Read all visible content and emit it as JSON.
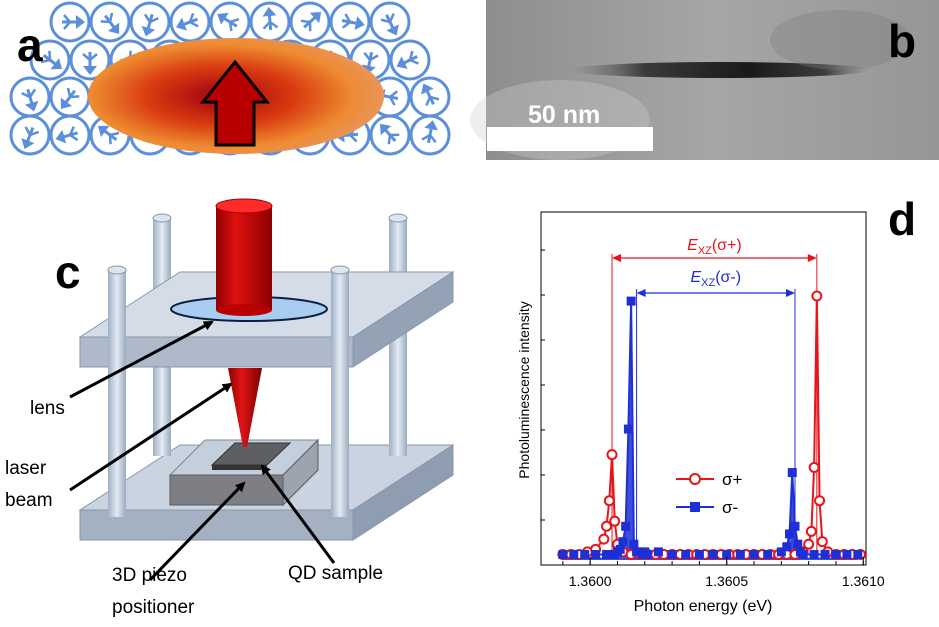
{
  "figure": {
    "panels": {
      "a": {
        "letter": "a"
      },
      "b": {
        "letter": "b",
        "scale_bar_label": "50 nm"
      },
      "c": {
        "letter": "c",
        "labels": {
          "lens": "lens",
          "laser_line1": "laser",
          "laser_line2": "beam",
          "piezo_line1": "3D piezo",
          "piezo_line2": "positioner",
          "qd_sample": "QD sample"
        }
      },
      "d": {
        "letter": "d"
      }
    },
    "colors": {
      "sigma_plus": "#e8141b",
      "sigma_minus": "#1f2fd6",
      "lattice": "#5b8fd9",
      "plate": "#b9c7d6",
      "laser": "#d00000"
    }
  },
  "chart_data": {
    "type": "line",
    "xlabel": "Photon energy (eV)",
    "ylabel": "Photoluminescence intensity",
    "xlim": [
      1.35982,
      1.36101
    ],
    "ylim": [
      0,
      1.22
    ],
    "xticks": [
      1.36,
      1.3605,
      1.361
    ],
    "xtick_labels": [
      "1.3600",
      "1.3605",
      "1.3610"
    ],
    "legend_position": "center",
    "annotations": {
      "exz_plus": {
        "E": "E",
        "sub": "XZ",
        "rest": "(σ+)",
        "x1": 1.36008,
        "x2": 1.36083
      },
      "exz_minus": {
        "E": "E",
        "sub": "XZ",
        "rest": "(σ-)",
        "x1": 1.36017,
        "x2": 1.36075
      }
    },
    "series": [
      {
        "name": "σ+",
        "marker": "open-circle",
        "x": [
          1.3599,
          1.35993,
          1.35996,
          1.35999,
          1.36002,
          1.36005,
          1.36006,
          1.36007,
          1.36008,
          1.36009,
          1.3601,
          1.36012,
          1.36015,
          1.36018,
          1.36021,
          1.36024,
          1.36027,
          1.3603,
          1.36033,
          1.36036,
          1.36039,
          1.36042,
          1.36045,
          1.36048,
          1.36051,
          1.36054,
          1.36057,
          1.3606,
          1.36063,
          1.36066,
          1.36069,
          1.36072,
          1.36075,
          1.36078,
          1.3608,
          1.36081,
          1.36082,
          1.36083,
          1.36084,
          1.36085,
          1.36087,
          1.3609,
          1.36093,
          1.36096,
          1.36099
        ],
        "y": [
          0.01,
          0.01,
          0.01,
          0.02,
          0.03,
          0.07,
          0.12,
          0.22,
          0.4,
          0.14,
          0.05,
          0.02,
          0.01,
          0.01,
          0.01,
          0.01,
          0.01,
          0.01,
          0.01,
          0.01,
          0.01,
          0.01,
          0.01,
          0.01,
          0.01,
          0.01,
          0.01,
          0.01,
          0.01,
          0.01,
          0.01,
          0.01,
          0.01,
          0.02,
          0.05,
          0.1,
          0.35,
          1.02,
          0.22,
          0.06,
          0.02,
          0.01,
          0.01,
          0.01,
          0.01
        ]
      },
      {
        "name": "σ-",
        "marker": "filled-square",
        "x": [
          1.3599,
          1.35994,
          1.35998,
          1.36002,
          1.36006,
          1.36009,
          1.3601,
          1.36011,
          1.36012,
          1.36013,
          1.36014,
          1.36015,
          1.36016,
          1.36017,
          1.36018,
          1.36019,
          1.3602,
          1.36021,
          1.36025,
          1.3603,
          1.36035,
          1.3604,
          1.36045,
          1.3605,
          1.36055,
          1.3606,
          1.36065,
          1.3607,
          1.36072,
          1.36073,
          1.36074,
          1.36075,
          1.36076,
          1.36077,
          1.36078,
          1.36082,
          1.36086,
          1.3609,
          1.36094,
          1.36098
        ],
        "y": [
          0.01,
          0.01,
          0.01,
          0.01,
          0.01,
          0.01,
          0.02,
          0.03,
          0.06,
          0.12,
          0.5,
          1.0,
          0.05,
          0.02,
          0.02,
          0.01,
          0.02,
          0.01,
          0.02,
          0.01,
          0.01,
          0.01,
          0.01,
          0.01,
          0.01,
          0.01,
          0.01,
          0.02,
          0.04,
          0.09,
          0.33,
          0.12,
          0.05,
          0.02,
          0.01,
          0.01,
          0.01,
          0.01,
          0.01,
          0.01
        ]
      }
    ]
  }
}
